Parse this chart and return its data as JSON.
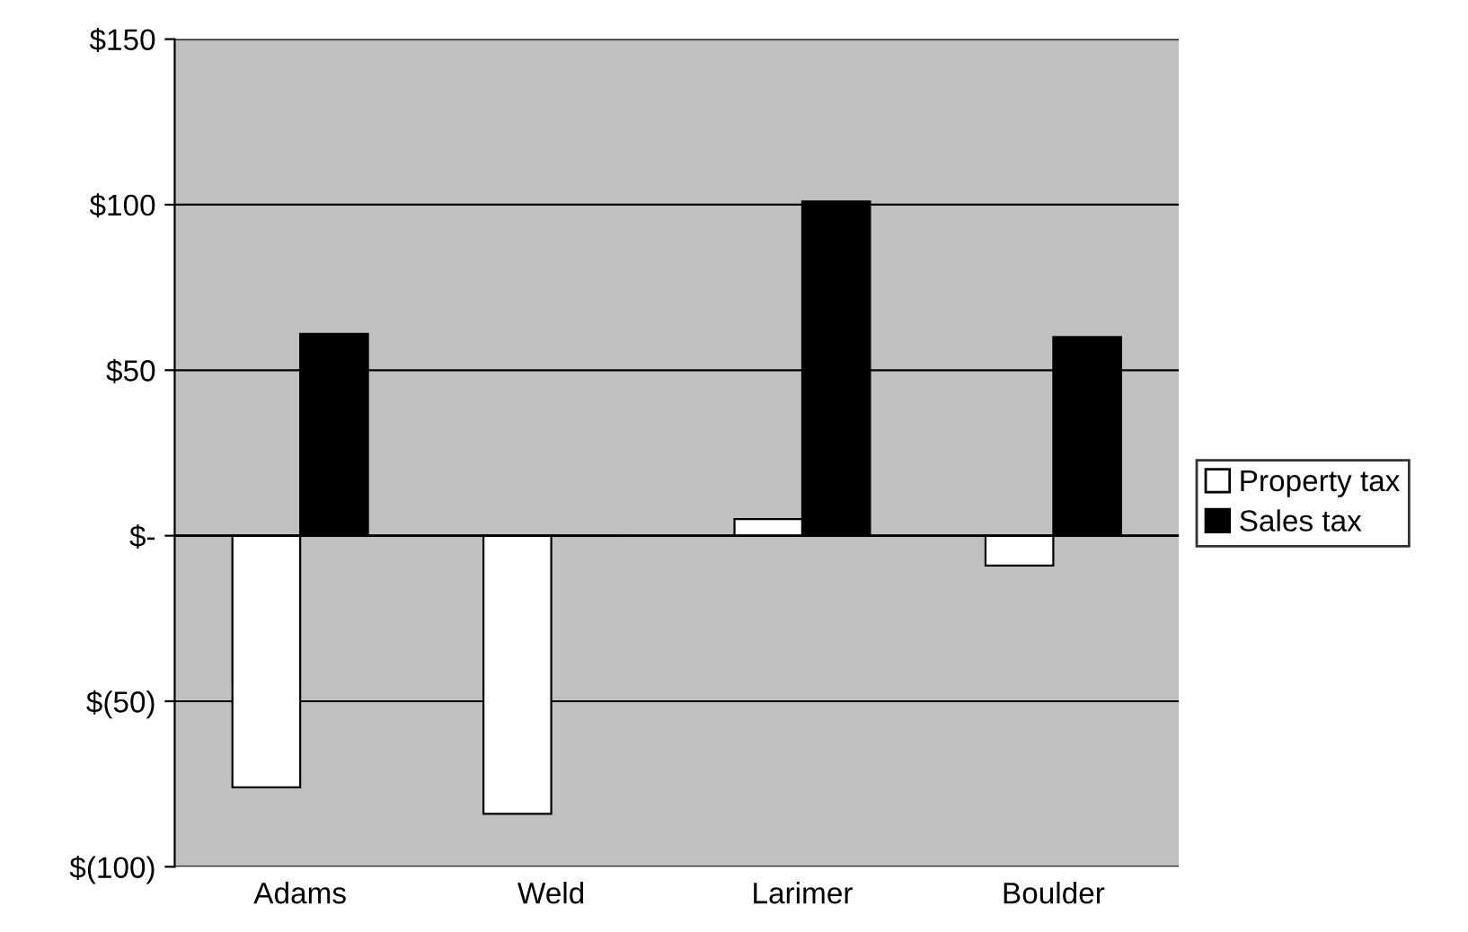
{
  "chart_data": {
    "type": "bar",
    "categories": [
      "Adams",
      "Weld",
      "Larimer",
      "Boulder"
    ],
    "series": [
      {
        "name": "Property tax",
        "color": "#ffffff",
        "values": [
          -76,
          -84,
          5,
          -9
        ]
      },
      {
        "name": "Sales tax",
        "color": "#000000",
        "values": [
          61,
          0,
          101,
          60
        ]
      }
    ],
    "ylim": [
      -100,
      150
    ],
    "yticks": [
      {
        "value": -100,
        "label": "$(100)"
      },
      {
        "value": -50,
        "label": "$(50)"
      },
      {
        "value": 0,
        "label": "$-"
      },
      {
        "value": 50,
        "label": "$50"
      },
      {
        "value": 100,
        "label": "$100"
      },
      {
        "value": 150,
        "label": "$150"
      }
    ],
    "grid": "y",
    "legend": "right"
  }
}
